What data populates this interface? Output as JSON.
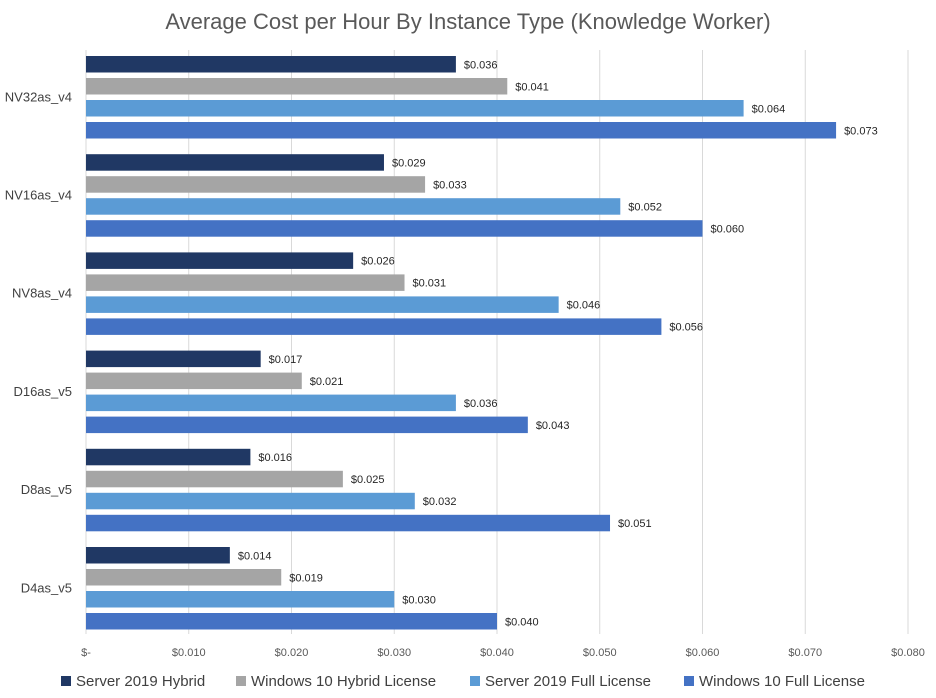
{
  "chart_data": {
    "type": "bar",
    "orientation": "horizontal",
    "title": "Average Cost per Hour By Instance Type (Knowledge Worker)",
    "xlabel": "",
    "ylabel": "",
    "xlim": [
      0,
      0.08
    ],
    "x_ticks": [
      0,
      0.01,
      0.02,
      0.03,
      0.04,
      0.05,
      0.06,
      0.07,
      0.08
    ],
    "x_tick_labels": [
      "$-",
      "$0.010",
      "$0.020",
      "$0.030",
      "$0.040",
      "$0.050",
      "$0.060",
      "$0.070",
      "$0.080"
    ],
    "grid": true,
    "legend_position": "bottom",
    "categories": [
      "NV32as_v4",
      "NV16as_v4",
      "NV8as_v4",
      "D16as_v5",
      "D8as_v5",
      "D4as_v5"
    ],
    "series": [
      {
        "name": "Server 2019 Hybrid",
        "color": "#203864",
        "values": [
          0.036,
          0.029,
          0.026,
          0.017,
          0.016,
          0.014
        ],
        "labels": [
          "$0.036",
          "$0.029",
          "$0.026",
          "$0.017",
          "$0.016",
          "$0.014"
        ]
      },
      {
        "name": "Windows 10 Hybrid License",
        "color": "#a5a5a5",
        "values": [
          0.041,
          0.033,
          0.031,
          0.021,
          0.025,
          0.019
        ],
        "labels": [
          "$0.041",
          "$0.033",
          "$0.031",
          "$0.021",
          "$0.025",
          "$0.019"
        ]
      },
      {
        "name": "Server 2019 Full License",
        "color": "#5b9bd5",
        "values": [
          0.064,
          0.052,
          0.046,
          0.036,
          0.032,
          0.03
        ],
        "labels": [
          "$0.064",
          "$0.052",
          "$0.046",
          "$0.036",
          "$0.032",
          "$0.030"
        ]
      },
      {
        "name": "Windows 10 Full License",
        "color": "#4472c4",
        "values": [
          0.073,
          0.06,
          0.056,
          0.043,
          0.051,
          0.04
        ],
        "labels": [
          "$0.073",
          "$0.060",
          "$0.056",
          "$0.043",
          "$0.051",
          "$0.040"
        ]
      }
    ]
  }
}
